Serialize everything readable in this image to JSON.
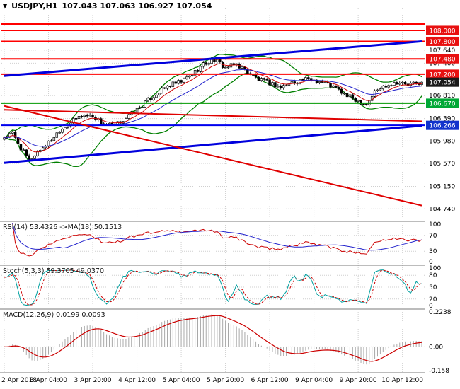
{
  "header": {
    "symbol_timeframe": "USDJPY,H1",
    "ohlc": "107.043 107.063 106.927 107.054",
    "dropdown_icon": "▼"
  },
  "chart_data": {
    "type": "candlestick",
    "symbol": "USDJPY",
    "timeframe": "H1",
    "current": {
      "open": 107.043,
      "high": 107.063,
      "low": 106.927,
      "close": 107.054
    },
    "total_bars": 152,
    "x_label_step": 16,
    "x_labels": [
      "2 Apr 2018",
      "3 Apr 04:00",
      "3 Apr 20:00",
      "4 Apr 12:00",
      "5 Apr 04:00",
      "5 Apr 20:00",
      "6 Apr 12:00",
      "9 Apr 04:00",
      "9 Apr 20:00",
      "10 Apr 12:00"
    ],
    "price_anchors": [
      [
        0,
        106.05
      ],
      [
        3,
        106.12
      ],
      [
        6,
        105.85
      ],
      [
        9,
        105.62
      ],
      [
        12,
        105.78
      ],
      [
        16,
        105.95
      ],
      [
        20,
        106.18
      ],
      [
        24,
        106.32
      ],
      [
        28,
        106.45
      ],
      [
        32,
        106.44
      ],
      [
        36,
        106.28
      ],
      [
        40,
        106.26
      ],
      [
        44,
        106.4
      ],
      [
        48,
        106.55
      ],
      [
        52,
        106.72
      ],
      [
        56,
        106.88
      ],
      [
        60,
        107.0
      ],
      [
        64,
        107.06
      ],
      [
        68,
        107.2
      ],
      [
        72,
        107.38
      ],
      [
        76,
        107.46
      ],
      [
        80,
        107.32
      ],
      [
        84,
        107.38
      ],
      [
        88,
        107.24
      ],
      [
        92,
        107.1
      ],
      [
        96,
        107.04
      ],
      [
        100,
        106.96
      ],
      [
        104,
        107.05
      ],
      [
        108,
        107.1
      ],
      [
        112,
        107.1
      ],
      [
        116,
        107.04
      ],
      [
        120,
        106.94
      ],
      [
        124,
        106.8
      ],
      [
        128,
        106.72
      ],
      [
        131,
        106.65
      ],
      [
        134,
        106.88
      ],
      [
        138,
        107.0
      ],
      [
        142,
        107.06
      ],
      [
        146,
        107.0
      ],
      [
        151,
        107.054
      ]
    ],
    "noise_amplitude": 0.045,
    "y_axis": {
      "range": [
        104.55,
        108.4
      ],
      "plain_ticks": [
        "107.640",
        "107.400",
        "106.810",
        "106.390",
        "105.980",
        "105.570",
        "105.150",
        "104.740"
      ],
      "current_price_badge": {
        "value": 107.054,
        "label": "107.054",
        "bg": "#1a1a1a"
      }
    },
    "levels": [
      {
        "price": 108.115,
        "color": "#ff0000",
        "width": 2,
        "badge": null,
        "badge_bg": null
      },
      {
        "price": 108.0,
        "color": "#ff0000",
        "width": 2,
        "badge": "108.000",
        "badge_bg": "#e81010"
      },
      {
        "price": 107.8,
        "color": "#ff0000",
        "width": 2,
        "badge": "107.800",
        "badge_bg": "#e81010"
      },
      {
        "price": 107.48,
        "color": "#ff0000",
        "width": 2,
        "badge": "107.480",
        "badge_bg": "#e81010"
      },
      {
        "price": 107.2,
        "color": "#ff0000",
        "width": 2,
        "badge": "107.200",
        "badge_bg": "#e81010"
      },
      {
        "price": 106.67,
        "color": "#009900",
        "width": 2,
        "badge": "106.670",
        "badge_bg": "#00a836"
      },
      {
        "price": 106.266,
        "color": "#0000ee",
        "width": 2,
        "badge": "106.266",
        "badge_bg": "#1133cc"
      }
    ],
    "trend_lines": [
      {
        "from_bar": 0,
        "from_price": 107.17,
        "to_bar": 151,
        "to_price": 107.8,
        "color": "#0000dd",
        "width": 3
      },
      {
        "from_bar": 0,
        "from_price": 105.58,
        "to_bar": 151,
        "to_price": 106.26,
        "color": "#0000dd",
        "width": 3
      },
      {
        "from_bar": 0,
        "from_price": 106.62,
        "to_bar": 151,
        "to_price": 104.8,
        "color": "#e00000",
        "width": 2
      },
      {
        "from_bar": 0,
        "from_price": 106.55,
        "to_bar": 151,
        "to_price": 106.34,
        "color": "#e00000",
        "width": 2
      }
    ],
    "overlays": {
      "bollinger": {
        "period": 20,
        "deviation": 2,
        "color": "#008000"
      },
      "ma_fast": {
        "period": 8,
        "color": "#cc0000"
      },
      "ma_slow": {
        "period": 21,
        "color": "#2222cc"
      }
    }
  },
  "panels": {
    "rsi": {
      "label": "RSI(14) 53.4326 ->MA(18) 50.1513",
      "period": 14,
      "ma_period": 18,
      "ticks": [
        "100",
        "70",
        "30",
        "0"
      ],
      "tick_values": [
        100,
        70,
        30,
        0
      ],
      "grid_levels": [
        70,
        30
      ],
      "range": [
        0,
        100
      ],
      "main_color": "#cc0000",
      "signal_color": "#2222cc"
    },
    "stoch": {
      "label": "Stoch(5,3,3) 59.3705 49.0370",
      "k": 5,
      "slowing": 3,
      "d": 3,
      "ticks": [
        "100",
        "80",
        "50",
        "20",
        "0"
      ],
      "tick_values": [
        100,
        80,
        50,
        20,
        0
      ],
      "grid_levels": [
        80,
        50,
        20
      ],
      "range": [
        0,
        100
      ],
      "main_color": "#00a0a0",
      "signal_color": "#cc0000"
    },
    "macd": {
      "label": "MACD(12,26,9) 0.0199 0.0093",
      "fast": 12,
      "slow": 26,
      "signal": 9,
      "ticks": [
        "0.2238",
        "0.00",
        "-0.158"
      ],
      "tick_values": [
        0.2238,
        0,
        -0.158
      ],
      "range": [
        -0.158,
        0.2238
      ],
      "hist_color": "#a8a8a8",
      "signal_color": "#cc0000"
    }
  },
  "colors": {
    "background": "#ffffff",
    "grid": "#cfcfcf",
    "candle": "#000000",
    "axis_text": "#000000",
    "separator": "#7a7a7a"
  }
}
